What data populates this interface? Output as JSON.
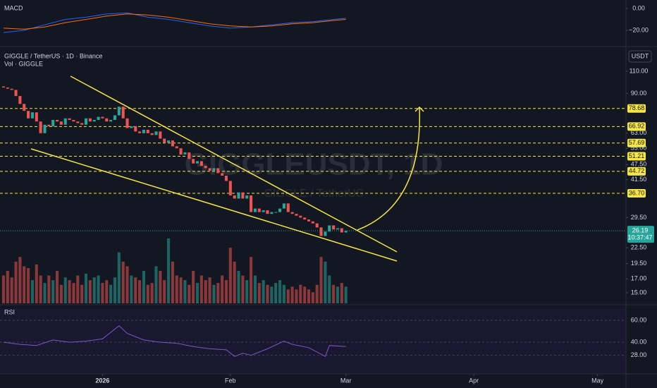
{
  "chart_data": {
    "type": "candlestick",
    "title": "GIGGLE / TetherUS · 1D · Binance",
    "subtitle": "Vol · GIGGLE",
    "watermark": "GIGGLEUSDT, 1D",
    "watermark_sub": "GIGGLE / TetherUS",
    "currency": "USDT",
    "log_scale": true,
    "up_color": "#26a69a",
    "down_color": "#ef5350",
    "open": [
      96,
      95,
      94,
      93,
      88,
      82,
      77,
      72,
      76,
      70,
      63,
      68,
      67,
      71,
      70,
      68,
      72,
      71,
      70,
      69,
      68,
      72,
      70,
      71,
      73,
      72,
      70,
      71,
      74,
      80,
      72,
      66,
      67,
      64,
      63,
      65,
      63,
      62,
      64,
      60,
      58,
      59,
      56,
      55,
      52,
      53,
      50,
      48,
      49,
      47,
      46,
      45,
      46,
      44,
      43,
      41,
      36,
      35,
      37,
      35,
      36,
      31,
      32,
      31,
      31.5,
      30.5,
      31,
      31,
      32,
      33.5,
      31,
      30.5,
      30,
      29.5,
      29,
      28.5,
      28,
      27,
      25,
      26,
      27.5,
      26.5,
      26.8,
      25.8
    ],
    "close": [
      95,
      94,
      93,
      88,
      82,
      77,
      72,
      76,
      70,
      63,
      68,
      67,
      71,
      70,
      68,
      72,
      71,
      70,
      69,
      68,
      72,
      70,
      71,
      73,
      72,
      70,
      71,
      74,
      80,
      72,
      66,
      67,
      64,
      63,
      65,
      63,
      62,
      64,
      60,
      58,
      59,
      56,
      55,
      52,
      53,
      50,
      48,
      49,
      47,
      46,
      45,
      46,
      44,
      43,
      41,
      36,
      35,
      37,
      35,
      36,
      31,
      32,
      31,
      31.5,
      30.5,
      31,
      31,
      32,
      33.5,
      31,
      30.5,
      30,
      29.5,
      29,
      28.5,
      28,
      27,
      25,
      26,
      27.5,
      26.5,
      26.8,
      25.8,
      26.19
    ],
    "volume": [
      30,
      35,
      28,
      45,
      50,
      40,
      38,
      25,
      42,
      30,
      22,
      30,
      25,
      35,
      20,
      28,
      25,
      22,
      30,
      20,
      32,
      25,
      28,
      30,
      22,
      25,
      20,
      28,
      55,
      45,
      40,
      30,
      28,
      25,
      35,
      20,
      22,
      40,
      35,
      25,
      70,
      45,
      30,
      28,
      25,
      20,
      35,
      22,
      30,
      25,
      28,
      20,
      22,
      30,
      25,
      60,
      45,
      35,
      30,
      25,
      50,
      30,
      22,
      25,
      20,
      18,
      22,
      25,
      20,
      15,
      18,
      15,
      20,
      18,
      15,
      12,
      20,
      50,
      45,
      30,
      20,
      18,
      22,
      18
    ],
    "xlim": [
      -0.85,
      150.9
    ],
    "xticks": [
      {
        "value": 24,
        "label": "2026"
      },
      {
        "value": 55,
        "label": "Feb"
      },
      {
        "value": 83,
        "label": "Mar"
      },
      {
        "value": 114,
        "label": "Apr"
      },
      {
        "value": 144,
        "label": "May"
      }
    ],
    "ylim": [
      13.64,
      133.9
    ],
    "yticks": [
      {
        "value": 110,
        "label": "110.00"
      },
      {
        "value": 90,
        "label": "90.00"
      },
      {
        "value": 63,
        "label": "63.00"
      },
      {
        "value": 55,
        "label": "55.00"
      },
      {
        "value": 47.5,
        "label": "47.50"
      },
      {
        "value": 41.5,
        "label": "41.50"
      },
      {
        "value": 29.5,
        "label": "29.50"
      },
      {
        "value": 22.5,
        "label": "22.50"
      },
      {
        "value": 19.5,
        "label": "19.50"
      },
      {
        "value": 17,
        "label": "17.00"
      },
      {
        "value": 15,
        "label": "15.00"
      }
    ],
    "levels": [
      78.68,
      66.92,
      57.69,
      51.21,
      44.72,
      36.7
    ],
    "level_labels": [
      "78.68",
      "66.92",
      "57.69",
      "51.21",
      "44.72",
      "36.70"
    ],
    "level_color": "#f5e642",
    "last_price": 26.19,
    "countdown": "10:37:47",
    "macd": {
      "title": "MACD",
      "x": [
        0,
        5,
        10,
        15,
        20,
        25,
        30,
        35,
        40,
        45,
        50,
        55,
        60,
        65,
        70,
        75,
        80,
        83
      ],
      "series": [
        {
          "color": "#2962ff",
          "values": [
            -22,
            -20,
            -15,
            -10,
            -8,
            -5,
            -4,
            -8,
            -10,
            -13,
            -16,
            -18,
            -17,
            -15,
            -13,
            -12,
            -10,
            -9
          ]
        },
        {
          "color": "#ff6d00",
          "values": [
            -18,
            -19,
            -17,
            -13,
            -10,
            -7,
            -5,
            -6,
            -8,
            -11,
            -14,
            -16,
            -17,
            -16,
            -14,
            -13,
            -11,
            -10
          ]
        }
      ],
      "ylim": [
        -34.2,
        7.74
      ],
      "yticks": [
        {
          "value": 0,
          "label": "0.00"
        },
        {
          "value": -20,
          "label": "−20.00"
        }
      ]
    },
    "rsi": {
      "title": "RSI",
      "color": "#7e57c2",
      "x": [
        0,
        4,
        8,
        12,
        16,
        20,
        24,
        28,
        30,
        34,
        38,
        42,
        46,
        50,
        54,
        56,
        58,
        60,
        64,
        68,
        70,
        74,
        78,
        79,
        83
      ],
      "values": [
        40,
        38,
        37,
        42,
        40,
        41,
        43,
        55,
        48,
        42,
        40,
        39,
        36,
        34,
        33,
        27,
        30,
        28,
        34,
        41,
        38,
        35,
        27,
        37,
        36
      ],
      "ylim": [
        11,
        71
      ],
      "yticks": [
        {
          "value": 60,
          "label": "60.00"
        },
        {
          "value": 40,
          "label": "40.00"
        },
        {
          "value": 28,
          "label": "28.00"
        }
      ]
    }
  }
}
